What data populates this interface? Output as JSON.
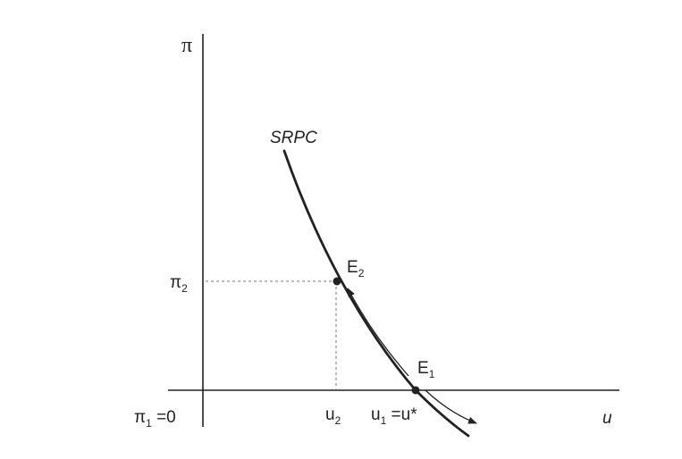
{
  "diagram": {
    "axes": {
      "y_label": "π",
      "x_label": "u"
    },
    "curve_label": "SRPC",
    "points": {
      "e1": {
        "base": "E",
        "sub": "1"
      },
      "e2": {
        "base": "E",
        "sub": "2"
      }
    },
    "y_ticks": {
      "pi2": {
        "base": "π",
        "sub": "2"
      },
      "pi1": {
        "base": "π",
        "sub": "1",
        "tail": " =0"
      }
    },
    "x_ticks": {
      "u2": {
        "base": "u",
        "sub": "2"
      },
      "u1": {
        "base": "u",
        "sub": "1",
        "tail": " =u*"
      }
    },
    "colors": {
      "ink": "#222222",
      "guide": "#777777",
      "background": "#ffffff"
    }
  }
}
